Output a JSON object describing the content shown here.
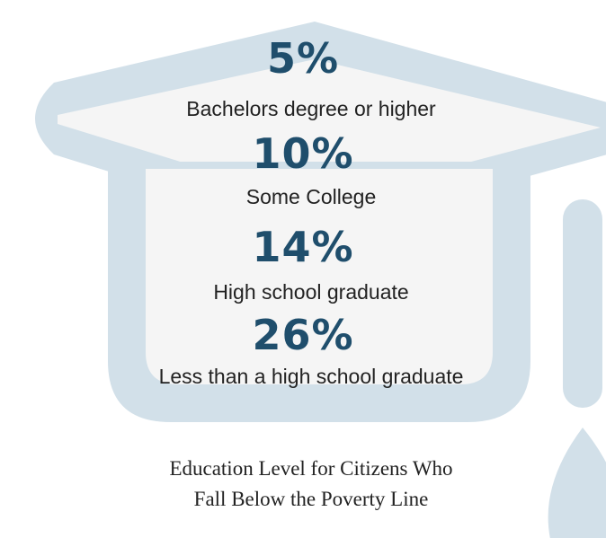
{
  "colors": {
    "cap": "#d2e0e9",
    "cap_fill": "#f5f5f5",
    "value_text": "#1f4e6c",
    "label_text": "#222222",
    "title_text": "#222222"
  },
  "chart_data": {
    "type": "table",
    "categories": [
      "Bachelors degree or higher",
      "Some College",
      "High school graduate",
      "Less than a high school graduate"
    ],
    "values": [
      5,
      10,
      14,
      26
    ],
    "value_labels": [
      "5%",
      "10%",
      "14%",
      "26%"
    ],
    "title_lines": [
      "Education Level for Citizens Who",
      "Fall Below the Poverty Line"
    ]
  }
}
